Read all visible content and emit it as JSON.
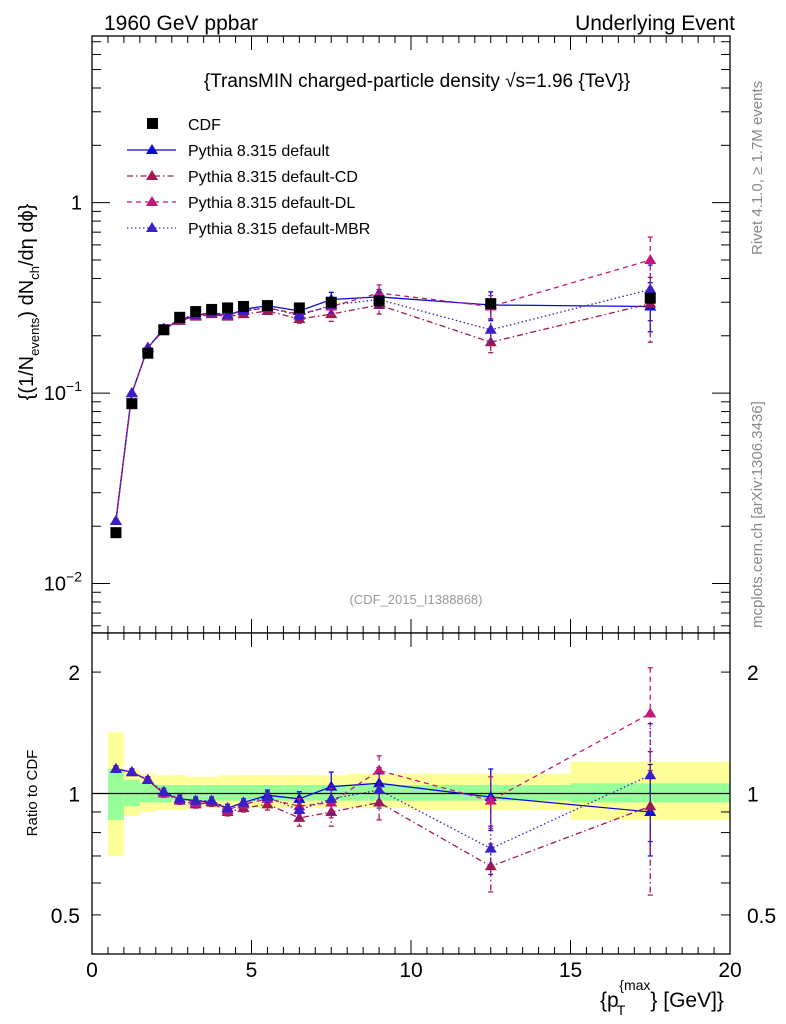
{
  "header": {
    "left": "1960 GeV ppbar",
    "right": "Underlying Event"
  },
  "side_text": {
    "rivet": "Rivet 4.1.0, ≥ 1.7M events",
    "mcplots": "mcplots.cern.ch [arXiv:1306.3436]"
  },
  "chart_data": [
    {
      "type": "line",
      "panel": "main",
      "title": "{TransMIN charged-particle density √s=1.96 {TeV}}",
      "analysis_label": "(CDF_2015_I1388868)",
      "ylabel_parts": {
        "a": "{(1/N",
        "a_sub": "events",
        "b": ") dN",
        "b_sub": "ch",
        "c": "/dη dϕ}"
      },
      "yscale": "log",
      "ylim": [
        0.0055,
        7.5
      ],
      "xlim": [
        0,
        20
      ],
      "y_ticks": [
        {
          "value": 0.01,
          "label": "10",
          "exp": "−2"
        },
        {
          "value": 0.1,
          "label": "10",
          "exp": "−1"
        },
        {
          "value": 1,
          "label": "1",
          "exp": ""
        }
      ],
      "legend_position": "top-left",
      "series": [
        {
          "name": "CDF",
          "style": "data",
          "color": "#000000",
          "x": [
            0.75,
            1.25,
            1.75,
            2.25,
            2.75,
            3.25,
            3.75,
            4.25,
            4.75,
            5.5,
            6.5,
            7.5,
            9.0,
            12.5,
            17.5
          ],
          "values": [
            0.0185,
            0.088,
            0.162,
            0.215,
            0.25,
            0.268,
            0.275,
            0.28,
            0.285,
            0.288,
            0.28,
            0.3,
            0.305,
            0.295,
            0.315
          ]
        },
        {
          "name": "Pythia 8.315 default",
          "style": "solid",
          "color": "#0b0bd6",
          "x": [
            0.75,
            1.25,
            1.75,
            2.25,
            2.75,
            3.25,
            3.75,
            4.25,
            4.75,
            5.5,
            6.5,
            7.5,
            9.0,
            12.5,
            17.5
          ],
          "values": [
            0.0213,
            0.1,
            0.173,
            0.218,
            0.24,
            0.255,
            0.265,
            0.255,
            0.275,
            0.288,
            0.27,
            0.31,
            0.32,
            0.29,
            0.285
          ],
          "err_up": [
            0.0006,
            0.002,
            0.003,
            0.004,
            0.004,
            0.005,
            0.006,
            0.006,
            0.007,
            0.009,
            0.012,
            0.028,
            0.03,
            0.05,
            0.095
          ],
          "err_dn": [
            0.0006,
            0.002,
            0.003,
            0.004,
            0.004,
            0.005,
            0.006,
            0.006,
            0.007,
            0.009,
            0.012,
            0.028,
            0.03,
            0.05,
            0.075
          ]
        },
        {
          "name": "Pythia 8.315 default-CD",
          "style": "dashdot",
          "color": "#9e1a50",
          "x": [
            0.75,
            1.25,
            1.75,
            2.25,
            2.75,
            3.25,
            3.75,
            4.25,
            4.75,
            5.5,
            6.5,
            7.5,
            9.0,
            12.5,
            17.5
          ],
          "values": [
            0.0213,
            0.1,
            0.173,
            0.215,
            0.24,
            0.252,
            0.26,
            0.252,
            0.26,
            0.27,
            0.245,
            0.26,
            0.29,
            0.185,
            0.295
          ],
          "err_up": [
            0.0006,
            0.002,
            0.003,
            0.004,
            0.004,
            0.005,
            0.006,
            0.006,
            0.007,
            0.009,
            0.012,
            0.022,
            0.03,
            0.025,
            0.11
          ],
          "err_dn": [
            0.0006,
            0.002,
            0.003,
            0.004,
            0.004,
            0.005,
            0.006,
            0.006,
            0.007,
            0.009,
            0.012,
            0.022,
            0.03,
            0.022,
            0.11
          ]
        },
        {
          "name": "Pythia 8.315 default-DL",
          "style": "dashed",
          "color": "#c41778",
          "x": [
            0.75,
            1.25,
            1.75,
            2.25,
            2.75,
            3.25,
            3.75,
            4.25,
            4.75,
            5.5,
            6.5,
            7.5,
            9.0,
            12.5,
            17.5
          ],
          "values": [
            0.0213,
            0.1,
            0.173,
            0.215,
            0.245,
            0.255,
            0.265,
            0.255,
            0.27,
            0.28,
            0.26,
            0.285,
            0.335,
            0.285,
            0.5
          ],
          "err_up": [
            0.0006,
            0.002,
            0.003,
            0.004,
            0.004,
            0.005,
            0.006,
            0.006,
            0.007,
            0.009,
            0.012,
            0.025,
            0.035,
            0.04,
            0.16
          ],
          "err_dn": [
            0.0006,
            0.002,
            0.003,
            0.004,
            0.004,
            0.005,
            0.006,
            0.006,
            0.007,
            0.009,
            0.012,
            0.025,
            0.035,
            0.04,
            0.14
          ]
        },
        {
          "name": "Pythia 8.315 default-MBR",
          "style": "dotted",
          "color": "#3a1ec8",
          "x": [
            0.75,
            1.25,
            1.75,
            2.25,
            2.75,
            3.25,
            3.75,
            4.25,
            4.75,
            5.5,
            6.5,
            7.5,
            9.0,
            12.5,
            17.5
          ],
          "values": [
            0.0213,
            0.1,
            0.173,
            0.218,
            0.245,
            0.258,
            0.265,
            0.258,
            0.27,
            0.282,
            0.255,
            0.29,
            0.31,
            0.215,
            0.35
          ],
          "err_up": [
            0.0006,
            0.002,
            0.003,
            0.004,
            0.004,
            0.005,
            0.006,
            0.006,
            0.007,
            0.009,
            0.012,
            0.025,
            0.03,
            0.03,
            0.12
          ],
          "err_dn": [
            0.0006,
            0.002,
            0.003,
            0.004,
            0.004,
            0.005,
            0.006,
            0.006,
            0.007,
            0.009,
            0.012,
            0.025,
            0.03,
            0.03,
            0.11
          ]
        }
      ]
    },
    {
      "type": "line",
      "panel": "ratio",
      "ylabel": "Ratio to CDF",
      "xlabel_parts": {
        "a": "{p",
        "sub": "T",
        "sup": "{max",
        "b": "} [GeV]}"
      },
      "yscale": "log",
      "ylim": [
        0.4,
        2.5
      ],
      "xlim": [
        0,
        20
      ],
      "y_ticks": [
        {
          "value": 0.5,
          "label": "0.5"
        },
        {
          "value": 1,
          "label": "1"
        },
        {
          "value": 2,
          "label": "2"
        }
      ],
      "x_ticks": [
        {
          "value": 0,
          "label": "0"
        },
        {
          "value": 5,
          "label": "5"
        },
        {
          "value": 10,
          "label": "10"
        },
        {
          "value": 15,
          "label": "15"
        },
        {
          "value": 20,
          "label": "20"
        }
      ],
      "bands": {
        "edges": [
          0.5,
          1.0,
          1.5,
          2.0,
          2.5,
          3.0,
          3.5,
          4.0,
          4.5,
          5.0,
          6.0,
          7.0,
          8.0,
          10.0,
          15.0,
          20.0
        ],
        "stat_lo": [
          0.86,
          0.93,
          0.95,
          0.95,
          0.96,
          0.96,
          0.96,
          0.96,
          0.96,
          0.96,
          0.96,
          0.96,
          0.96,
          0.96,
          0.95
        ],
        "stat_hi": [
          1.15,
          1.08,
          1.06,
          1.05,
          1.05,
          1.05,
          1.05,
          1.05,
          1.05,
          1.05,
          1.05,
          1.05,
          1.05,
          1.05,
          1.06
        ],
        "total_lo": [
          0.7,
          0.88,
          0.9,
          0.91,
          0.91,
          0.92,
          0.92,
          0.92,
          0.92,
          0.92,
          0.92,
          0.92,
          0.92,
          0.91,
          0.86
        ],
        "total_hi": [
          1.42,
          1.15,
          1.12,
          1.11,
          1.11,
          1.1,
          1.1,
          1.11,
          1.11,
          1.11,
          1.11,
          1.11,
          1.12,
          1.12,
          1.2
        ]
      },
      "series": [
        {
          "name": "Pythia 8.315 default",
          "style": "solid",
          "color": "#0b0bd6",
          "x": [
            0.75,
            1.25,
            1.75,
            2.25,
            2.75,
            3.25,
            3.75,
            4.25,
            4.75,
            5.5,
            6.5,
            7.5,
            9.0,
            12.5,
            17.5
          ],
          "values": [
            1.15,
            1.13,
            1.08,
            1.0,
            0.97,
            0.96,
            0.95,
            0.92,
            0.95,
            0.99,
            0.97,
            1.04,
            1.06,
            0.98,
            0.9
          ],
          "err_up": [
            0.02,
            0.02,
            0.02,
            0.02,
            0.02,
            0.02,
            0.02,
            0.02,
            0.02,
            0.03,
            0.04,
            0.09,
            0.1,
            0.17,
            0.28
          ],
          "err_dn": [
            0.02,
            0.02,
            0.02,
            0.02,
            0.02,
            0.02,
            0.02,
            0.02,
            0.02,
            0.03,
            0.04,
            0.09,
            0.1,
            0.17,
            0.2
          ]
        },
        {
          "name": "Pythia 8.315 default-CD",
          "style": "dashdot",
          "color": "#9e1a50",
          "x": [
            0.75,
            1.25,
            1.75,
            2.25,
            2.75,
            3.25,
            3.75,
            4.25,
            4.75,
            5.5,
            6.5,
            7.5,
            9.0,
            12.5,
            17.5
          ],
          "values": [
            1.15,
            1.13,
            1.08,
            1.0,
            0.96,
            0.94,
            0.95,
            0.9,
            0.92,
            0.94,
            0.87,
            0.9,
            0.95,
            0.66,
            0.93
          ],
          "err_up": [
            0.02,
            0.02,
            0.02,
            0.02,
            0.02,
            0.02,
            0.02,
            0.02,
            0.02,
            0.03,
            0.04,
            0.07,
            0.09,
            0.09,
            0.34
          ],
          "err_dn": [
            0.02,
            0.02,
            0.02,
            0.02,
            0.02,
            0.02,
            0.02,
            0.02,
            0.02,
            0.03,
            0.04,
            0.07,
            0.09,
            0.09,
            0.37
          ]
        },
        {
          "name": "Pythia 8.315 default-DL",
          "style": "dashed",
          "color": "#c41778",
          "x": [
            0.75,
            1.25,
            1.75,
            2.25,
            2.75,
            3.25,
            3.75,
            4.25,
            4.75,
            5.5,
            6.5,
            7.5,
            9.0,
            12.5,
            17.5
          ],
          "values": [
            1.15,
            1.13,
            1.08,
            1.0,
            0.97,
            0.95,
            0.96,
            0.91,
            0.94,
            0.97,
            0.93,
            0.95,
            1.14,
            0.96,
            1.58
          ],
          "err_up": [
            0.02,
            0.02,
            0.02,
            0.02,
            0.02,
            0.02,
            0.02,
            0.02,
            0.02,
            0.03,
            0.04,
            0.08,
            0.1,
            0.14,
            0.47
          ],
          "err_dn": [
            0.02,
            0.02,
            0.02,
            0.02,
            0.02,
            0.02,
            0.02,
            0.02,
            0.02,
            0.03,
            0.04,
            0.08,
            0.1,
            0.14,
            0.44
          ]
        },
        {
          "name": "Pythia 8.315 default-MBR",
          "style": "dotted",
          "color": "#3a1ec8",
          "x": [
            0.75,
            1.25,
            1.75,
            2.25,
            2.75,
            3.25,
            3.75,
            4.25,
            4.75,
            5.5,
            6.5,
            7.5,
            9.0,
            12.5,
            17.5
          ],
          "values": [
            1.15,
            1.13,
            1.08,
            1.01,
            0.97,
            0.96,
            0.96,
            0.92,
            0.95,
            0.98,
            0.91,
            0.97,
            1.02,
            0.73,
            1.11
          ],
          "err_up": [
            0.02,
            0.02,
            0.02,
            0.02,
            0.02,
            0.02,
            0.02,
            0.02,
            0.02,
            0.03,
            0.04,
            0.08,
            0.1,
            0.1,
            0.38
          ],
          "err_dn": [
            0.02,
            0.02,
            0.02,
            0.02,
            0.02,
            0.02,
            0.02,
            0.02,
            0.02,
            0.03,
            0.04,
            0.08,
            0.1,
            0.1,
            0.35
          ]
        }
      ]
    }
  ]
}
